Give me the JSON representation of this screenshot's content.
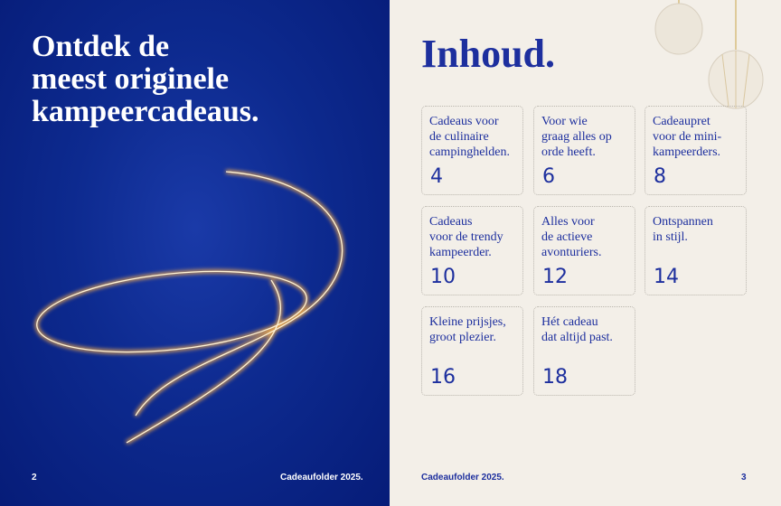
{
  "left_page": {
    "headline": "Ontdek de\nmeest originele\nkampeercadeaus.",
    "page_number": "2",
    "footer": "Cadeaufolder 2025."
  },
  "right_page": {
    "title": "Inhoud.",
    "page_number": "3",
    "footer": "Cadeaufolder 2025.",
    "items": [
      {
        "label": "Cadeaus voor\nde culinaire\ncampinghelden.",
        "page": "4"
      },
      {
        "label": "Voor wie\ngraag alles op\norde heeft.",
        "page": "6"
      },
      {
        "label": "Cadeaupret\nvoor de mini-\nkampeerders.",
        "page": "8"
      },
      {
        "label": "Cadeaus\nvoor de trendy\nkampeerder.",
        "page": "10"
      },
      {
        "label": "Alles voor\nde actieve\navonturiers.",
        "page": "12"
      },
      {
        "label": "Ontspannen\nin stijl.",
        "page": "14"
      },
      {
        "label": "Kleine prijsjes,\ngroot plezier.",
        "page": "16"
      },
      {
        "label": "Hét cadeau\ndat altijd past.",
        "page": "18"
      }
    ]
  },
  "colors": {
    "navy": "#0d2a8f",
    "accent_blue": "#1d2f9e",
    "paper": "#f3efe8"
  }
}
